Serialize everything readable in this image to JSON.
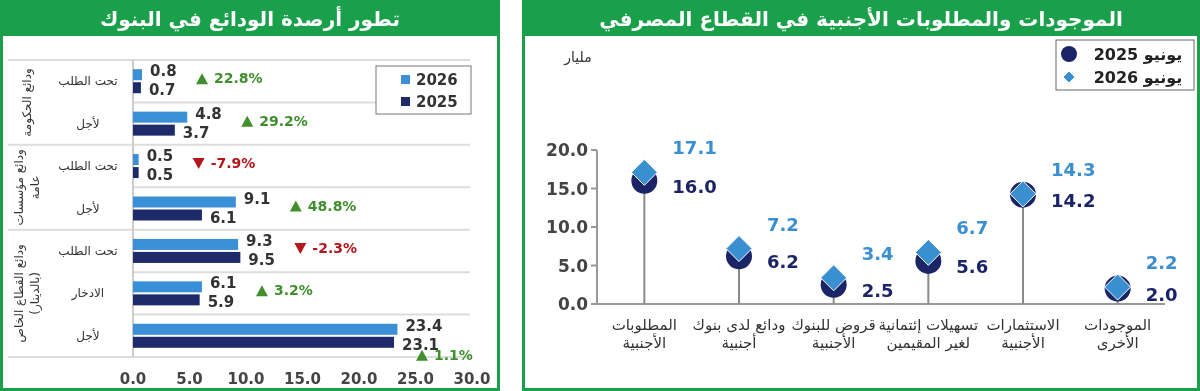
{
  "chart_data": [
    {
      "type": "lollipop",
      "title": "الموجودات والمطلوبات الأجنبية في القطاع المصرفي",
      "ylabel": "مليار",
      "categories": [
        "المطلوبات الأجنبية",
        "ودائع لدى بنوك أجنبية",
        "قروض للبنوك الأجنبية",
        "تسهيلات إئتمانية لغير المقيمين",
        "الاستثمارات الأجنبية",
        "الموجودات الأخرى"
      ],
      "series": [
        {
          "name": "يونيو 2025",
          "color": "#1b2466",
          "marker": "circle",
          "values": [
            16.0,
            6.2,
            2.5,
            5.6,
            14.2,
            2.0
          ],
          "value_labels": [
            "16.0",
            "6.2",
            "2.5",
            "5.6",
            "14.2",
            "2.0"
          ]
        },
        {
          "name": "يونيو 2026",
          "color": "#3a8fd0",
          "marker": "diamond",
          "values": [
            17.1,
            7.2,
            3.4,
            6.7,
            14.3,
            2.2
          ],
          "value_labels": [
            "17.1",
            "7.2",
            "3.4",
            "6.7",
            "14.3",
            "2.2"
          ]
        }
      ],
      "ylim": [
        0,
        20
      ],
      "yticks": [
        {
          "value": 0,
          "label": "0.0"
        },
        {
          "value": 5,
          "label": "5.0"
        },
        {
          "value": 10,
          "label": "10.0"
        },
        {
          "value": 15,
          "label": "15.0"
        },
        {
          "value": 20,
          "label": "20.0"
        }
      ],
      "legend": "top right"
    },
    {
      "type": "bar",
      "orientation": "horizontal",
      "title": "تطور أرصدة الودائع في البنوك",
      "categories": [
        "تحت الطلب",
        "لأجل",
        "تحت الطلب",
        "لأجل",
        "تحت الطلب",
        "الادخار",
        "لأجل"
      ],
      "series": [
        {
          "name": "2026",
          "color": "#3a8fd6",
          "values": [
            0.8,
            4.8,
            0.5,
            9.1,
            9.3,
            6.1,
            23.4
          ]
        },
        {
          "name": "2025",
          "color": "#1f2a6b",
          "values": [
            0.7,
            3.7,
            0.5,
            6.1,
            9.5,
            5.9,
            23.1
          ]
        }
      ],
      "xlim": [
        0,
        30
      ],
      "xticks": [
        {
          "value": 0,
          "label": "0.0"
        },
        {
          "value": 5,
          "label": "5.0"
        },
        {
          "value": 10,
          "label": "10.0"
        },
        {
          "value": 15,
          "label": "15.0"
        },
        {
          "value": 20,
          "label": "20.0"
        },
        {
          "value": 25,
          "label": "25.0"
        },
        {
          "value": 30,
          "label": "30.0"
        }
      ],
      "data_labels": true,
      "legend": "top right",
      "annotations": [
        "22.8%",
        "29.2%",
        "-7.9%",
        "48.8%",
        "-2.3%",
        "3.2%",
        "1.1%",
        "ودائع الحكومة",
        "ودائع مؤسسات عامة",
        "ودائع القطاع الخاص (بالدينار)"
      ]
    }
  ]
}
